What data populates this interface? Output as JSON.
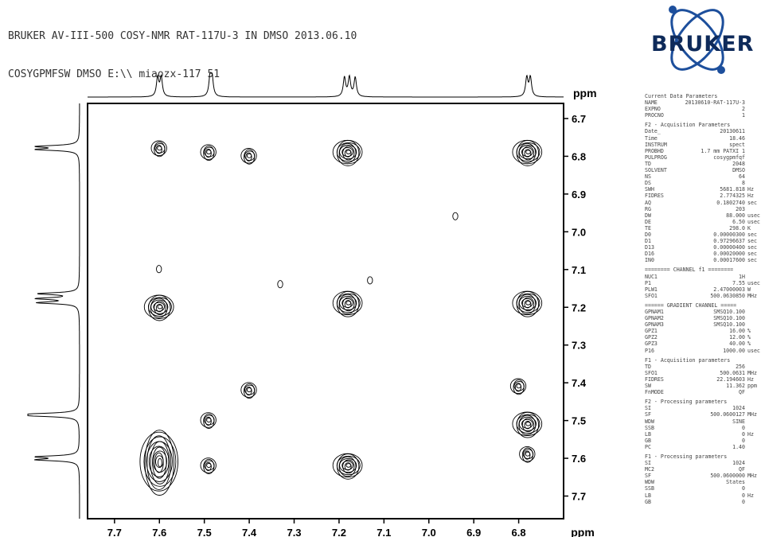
{
  "header": {
    "line1": "BRUKER AV-III-500 COSY-NMR RAT-117U-3 IN DMSO 2013.06.10",
    "line2": "COSYGPMFSW DMSO E:\\\\ miaozx-117 51"
  },
  "logo": {
    "text": "BRUKER",
    "color": "#0e2a5a"
  },
  "chart_data": {
    "type": "heatmap",
    "subtype": "2D COSY NMR contour plot",
    "x_axis": {
      "label": "ppm",
      "range": [
        7.76,
        6.7
      ],
      "reversed": true,
      "ticks": [
        7.7,
        7.6,
        7.5,
        7.4,
        7.3,
        7.2,
        7.1,
        7.0,
        6.9,
        6.8
      ]
    },
    "y_axis": {
      "label": "ppm",
      "range": [
        6.66,
        7.76
      ],
      "reversed": true,
      "position": "right",
      "ticks": [
        6.7,
        6.8,
        6.9,
        7.0,
        7.1,
        7.2,
        7.3,
        7.4,
        7.5,
        7.6,
        7.7
      ]
    },
    "projection_peaks_ppm": [
      7.604,
      7.596,
      7.487,
      7.483,
      7.188,
      7.177,
      7.164,
      6.782,
      6.774
    ],
    "cross_peaks": [
      {
        "x": 7.6,
        "y": 6.78,
        "size": "small"
      },
      {
        "x": 7.49,
        "y": 6.79,
        "size": "small"
      },
      {
        "x": 7.4,
        "y": 6.8,
        "size": "small"
      },
      {
        "x": 7.18,
        "y": 6.79,
        "size": "large"
      },
      {
        "x": 6.78,
        "y": 6.79,
        "size": "large"
      },
      {
        "x": 6.94,
        "y": 6.96,
        "size": "tiny"
      },
      {
        "x": 7.6,
        "y": 7.2,
        "size": "large"
      },
      {
        "x": 7.18,
        "y": 7.19,
        "size": "large"
      },
      {
        "x": 6.78,
        "y": 7.19,
        "size": "large"
      },
      {
        "x": 7.33,
        "y": 7.14,
        "size": "tiny"
      },
      {
        "x": 7.13,
        "y": 7.13,
        "size": "tiny"
      },
      {
        "x": 7.6,
        "y": 7.1,
        "size": "tiny"
      },
      {
        "x": 7.4,
        "y": 7.42,
        "size": "small"
      },
      {
        "x": 6.8,
        "y": 7.41,
        "size": "small"
      },
      {
        "x": 7.49,
        "y": 7.5,
        "size": "small"
      },
      {
        "x": 6.78,
        "y": 7.51,
        "size": "large"
      },
      {
        "x": 7.6,
        "y": 7.61,
        "size": "xlarge"
      },
      {
        "x": 7.49,
        "y": 7.62,
        "size": "small"
      },
      {
        "x": 7.18,
        "y": 7.62,
        "size": "large"
      },
      {
        "x": 6.78,
        "y": 7.59,
        "size": "small"
      }
    ],
    "contour_color": "#000000"
  },
  "params": [
    {
      "type": "title",
      "text": "Current Data Parameters"
    },
    {
      "k": "NAME",
      "v": "20130610-RAT-117U-3"
    },
    {
      "k": "EXPNO",
      "v": "2"
    },
    {
      "k": "PROCNO",
      "v": "1"
    },
    {
      "type": "title",
      "text": "F2 - Acquisition Parameters"
    },
    {
      "k": "Date_",
      "v": "20130611"
    },
    {
      "k": "Time",
      "v": "18.46"
    },
    {
      "k": "INSTRUM",
      "v": "spect"
    },
    {
      "k": "PROBHD",
      "v": "1.7 mm PATXI 1"
    },
    {
      "k": "PULPROG",
      "v": "cosygpmfqf"
    },
    {
      "k": "TD",
      "v": "2048"
    },
    {
      "k": "SOLVENT",
      "v": "DMSO"
    },
    {
      "k": "NS",
      "v": "64"
    },
    {
      "k": "DS",
      "v": "8"
    },
    {
      "k": "SWH",
      "v": "5681.818",
      "u": "Hz"
    },
    {
      "k": "FIDRES",
      "v": "2.774325",
      "u": "Hz"
    },
    {
      "k": "AQ",
      "v": "0.1802740",
      "u": "sec"
    },
    {
      "k": "RG",
      "v": "203"
    },
    {
      "k": "DW",
      "v": "88.000",
      "u": "usec"
    },
    {
      "k": "DE",
      "v": "6.50",
      "u": "usec"
    },
    {
      "k": "TE",
      "v": "298.0",
      "u": "K"
    },
    {
      "k": "D0",
      "v": "0.00000300",
      "u": "sec"
    },
    {
      "k": "D1",
      "v": "0.97296637",
      "u": "sec"
    },
    {
      "k": "D13",
      "v": "0.00000400",
      "u": "sec"
    },
    {
      "k": "D16",
      "v": "0.00020000",
      "u": "sec"
    },
    {
      "k": "IN0",
      "v": "0.00017600",
      "u": "sec"
    },
    {
      "type": "title",
      "text": "======== CHANNEL f1 ========"
    },
    {
      "k": "NUC1",
      "v": "1H"
    },
    {
      "k": "P1",
      "v": "7.55",
      "u": "usec"
    },
    {
      "k": "PLW1",
      "v": "2.47000003",
      "u": "W"
    },
    {
      "k": "SFO1",
      "v": "500.0630850",
      "u": "MHz"
    },
    {
      "type": "title",
      "text": "====== GRADIENT CHANNEL ====="
    },
    {
      "k": "GPNAM1",
      "v": "SMSQ10.100"
    },
    {
      "k": "GPNAM2",
      "v": "SMSQ10.100"
    },
    {
      "k": "GPNAM3",
      "v": "SMSQ10.100"
    },
    {
      "k": "GPZ1",
      "v": "16.00",
      "u": "%"
    },
    {
      "k": "GPZ2",
      "v": "12.00",
      "u": "%"
    },
    {
      "k": "GPZ3",
      "v": "40.00",
      "u": "%"
    },
    {
      "k": "P16",
      "v": "1000.00",
      "u": "usec"
    },
    {
      "type": "title",
      "text": "F1 - Acquisition parameters"
    },
    {
      "k": "TD",
      "v": "256"
    },
    {
      "k": "SFO1",
      "v": "500.0631",
      "u": "MHz"
    },
    {
      "k": "FIDRES",
      "v": "22.194603",
      "u": "Hz"
    },
    {
      "k": "SW",
      "v": "11.362",
      "u": "ppm"
    },
    {
      "k": "FnMODE",
      "v": "QF"
    },
    {
      "type": "title",
      "text": "F2 - Processing parameters"
    },
    {
      "k": "SI",
      "v": "1024"
    },
    {
      "k": "SF",
      "v": "500.0600127",
      "u": "MHz"
    },
    {
      "k": "WDW",
      "v": "SINE"
    },
    {
      "k": "SSB",
      "v": "0"
    },
    {
      "k": "LB",
      "v": "0",
      "u": "Hz"
    },
    {
      "k": "GB",
      "v": "0"
    },
    {
      "k": "PC",
      "v": "1.40"
    },
    {
      "type": "title",
      "text": "F1 - Processing parameters"
    },
    {
      "k": "SI",
      "v": "1024"
    },
    {
      "k": "MC2",
      "v": "QF"
    },
    {
      "k": "SF",
      "v": "500.0600000",
      "u": "MHz"
    },
    {
      "k": "WDW",
      "v": "States"
    },
    {
      "k": "SSB",
      "v": "0"
    },
    {
      "k": "LB",
      "v": "0",
      "u": "Hz"
    },
    {
      "k": "GB",
      "v": "0"
    }
  ]
}
